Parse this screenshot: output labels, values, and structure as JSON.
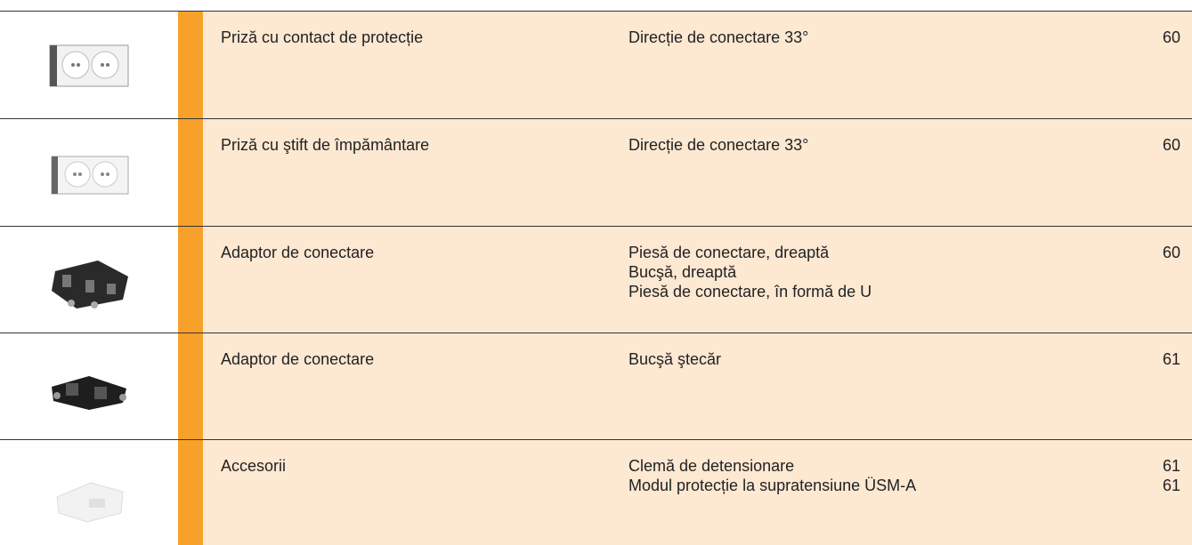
{
  "table": {
    "rows": [
      {
        "name": "Priză cu contact de protecție",
        "descriptions": [
          "Direcție de conectare 33°"
        ],
        "pages": [
          "60"
        ]
      },
      {
        "name": "Priză cu ştift de împământare",
        "descriptions": [
          "Direcție de conectare 33°"
        ],
        "pages": [
          "60"
        ]
      },
      {
        "name": "Adaptor de conectare",
        "descriptions": [
          "Piesă de conectare, dreaptă",
          "Bucşă, dreaptă",
          "Piesă de conectare, în formă de U"
        ],
        "pages": [
          "60"
        ]
      },
      {
        "name": "Adaptor de conectare",
        "descriptions": [
          "Bucşă ştecăr"
        ],
        "pages": [
          "61"
        ]
      },
      {
        "name": "Accesorii",
        "descriptions": [
          "Clemă de detensionare",
          "Modul protecție la supratensiune ÜSM-A"
        ],
        "pages": [
          "61",
          "61"
        ]
      }
    ]
  }
}
